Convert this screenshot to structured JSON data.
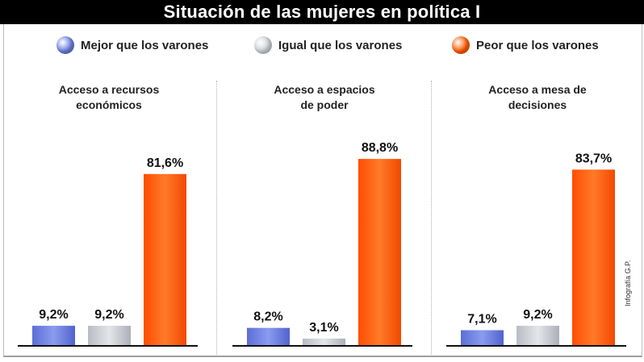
{
  "title": "Situación de las mujeres en política I",
  "legend": [
    {
      "label": "Mejor que los varones",
      "color": "#6b7fe0"
    },
    {
      "label": "Igual que los varones",
      "color": "#cfd1d8"
    },
    {
      "label": "Peor que los varones",
      "color": "#ff5a00"
    }
  ],
  "credit": "Infografía  G.P.",
  "chart_data": [
    {
      "type": "bar",
      "title": "Acceso a recursos económicos",
      "title_lines": [
        "Acceso a recursos",
        "económicos"
      ],
      "categories": [
        "Mejor que los varones",
        "Igual que los varones",
        "Peor que los varones"
      ],
      "values": [
        9.2,
        9.2,
        81.6
      ],
      "labels": [
        "9,2%",
        "9,2%",
        "81,6%"
      ],
      "ylim": [
        0,
        100
      ]
    },
    {
      "type": "bar",
      "title": "Acceso a espacios de poder",
      "title_lines": [
        "Acceso a espacios",
        "de poder"
      ],
      "categories": [
        "Mejor que los varones",
        "Igual que los varones",
        "Peor que los varones"
      ],
      "values": [
        8.2,
        3.1,
        88.8
      ],
      "labels": [
        "8,2%",
        "3,1%",
        "88,8%"
      ],
      "ylim": [
        0,
        100
      ]
    },
    {
      "type": "bar",
      "title": "Acceso a mesa de decisiones",
      "title_lines": [
        "Acceso a mesa de",
        "decisiones"
      ],
      "categories": [
        "Mejor que los varones",
        "Igual que los varones",
        "Peor que los varones"
      ],
      "values": [
        7.1,
        9.2,
        83.7
      ],
      "labels": [
        "7,1%",
        "9,2%",
        "83,7%"
      ],
      "ylim": [
        0,
        100
      ]
    }
  ]
}
